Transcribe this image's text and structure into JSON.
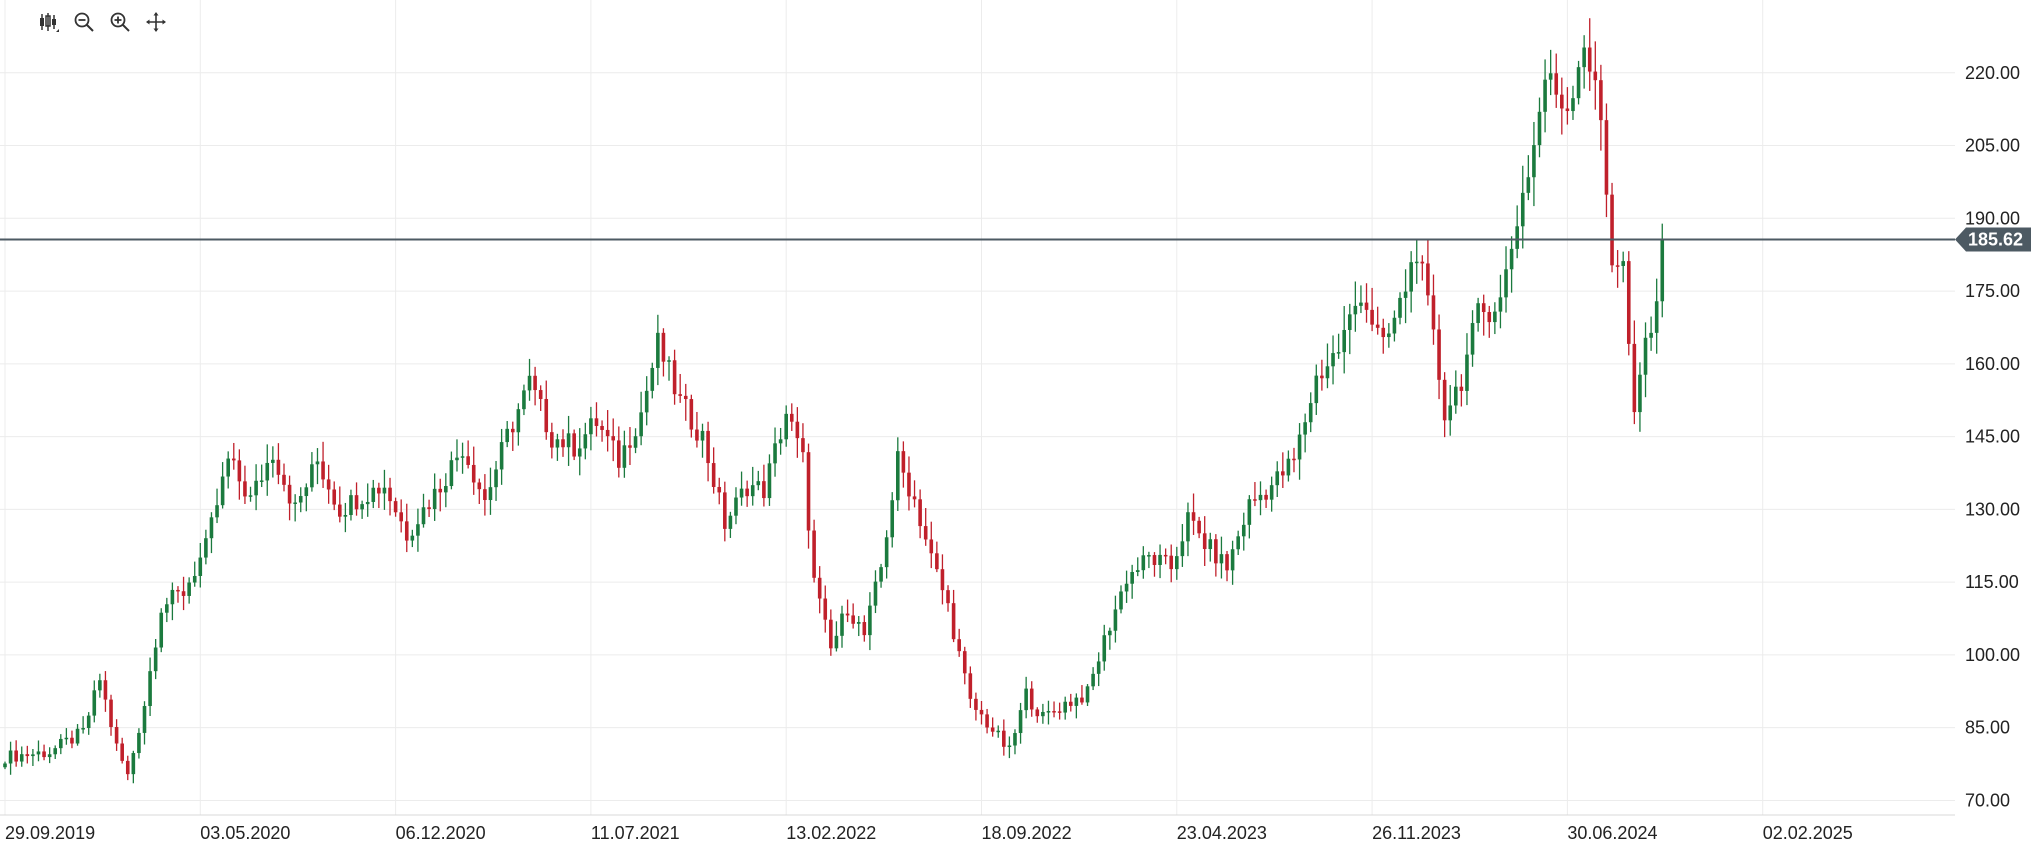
{
  "toolbar": {
    "icons": [
      "candlestick-type-icon",
      "zoom-out-icon",
      "zoom-in-icon",
      "pan-icon"
    ]
  },
  "colors": {
    "up": "#1b7a3e",
    "down": "#c0202b",
    "grid": "#ececec",
    "price_line": "#4d5a63",
    "price_tag": "#4d5a63",
    "axis_text": "#222222"
  },
  "chart_data": {
    "type": "candlestick",
    "title": "",
    "xlabel": "",
    "ylabel": "",
    "ylim": [
      67,
      235
    ],
    "yticks": [
      "70.00",
      "85.00",
      "100.00",
      "115.00",
      "130.00",
      "145.00",
      "160.00",
      "175.00",
      "190.00",
      "205.00",
      "220.00"
    ],
    "xticks": [
      "29.09.2019",
      "03.05.2020",
      "06.12.2020",
      "11.07.2021",
      "13.02.2022",
      "18.09.2022",
      "23.04.2023",
      "26.11.2023",
      "30.06.2024",
      "02.02.2025"
    ],
    "current_price": 185.62,
    "current_price_label": "185.62",
    "period": "weekly",
    "anchors": [
      [
        0,
        79
      ],
      [
        8,
        80
      ],
      [
        14,
        84
      ],
      [
        17,
        95
      ],
      [
        20,
        81
      ],
      [
        22,
        75
      ],
      [
        25,
        90
      ],
      [
        28,
        110
      ],
      [
        32,
        113
      ],
      [
        36,
        122
      ],
      [
        40,
        140
      ],
      [
        44,
        132
      ],
      [
        48,
        142
      ],
      [
        52,
        130
      ],
      [
        56,
        140
      ],
      [
        60,
        130
      ],
      [
        64,
        133
      ],
      [
        68,
        135
      ],
      [
        72,
        125
      ],
      [
        78,
        135
      ],
      [
        82,
        143
      ],
      [
        86,
        132
      ],
      [
        90,
        145
      ],
      [
        94,
        156
      ],
      [
        98,
        145
      ],
      [
        102,
        143
      ],
      [
        106,
        148
      ],
      [
        110,
        140
      ],
      [
        114,
        150
      ],
      [
        117,
        164
      ],
      [
        121,
        152
      ],
      [
        125,
        145
      ],
      [
        129,
        127
      ],
      [
        133,
        135
      ],
      [
        136,
        134
      ],
      [
        140,
        150
      ],
      [
        143,
        140
      ],
      [
        145,
        115
      ],
      [
        148,
        101
      ],
      [
        151,
        110
      ],
      [
        154,
        104
      ],
      [
        157,
        118
      ],
      [
        160,
        140
      ],
      [
        163,
        132
      ],
      [
        166,
        120
      ],
      [
        169,
        110
      ],
      [
        173,
        90
      ],
      [
        176,
        86
      ],
      [
        180,
        80
      ],
      [
        183,
        92
      ],
      [
        186,
        87
      ],
      [
        190,
        90
      ],
      [
        194,
        92
      ],
      [
        197,
        103
      ],
      [
        201,
        116
      ],
      [
        205,
        120
      ],
      [
        209,
        118
      ],
      [
        212,
        128
      ],
      [
        215,
        123
      ],
      [
        219,
        118
      ],
      [
        223,
        131
      ],
      [
        227,
        135
      ],
      [
        231,
        140
      ],
      [
        235,
        157
      ],
      [
        239,
        163
      ],
      [
        243,
        175
      ],
      [
        247,
        163
      ],
      [
        250,
        172
      ],
      [
        253,
        184
      ],
      [
        256,
        165
      ],
      [
        258,
        150
      ],
      [
        261,
        157
      ],
      [
        264,
        170
      ],
      [
        268,
        173
      ],
      [
        271,
        190
      ],
      [
        274,
        205
      ],
      [
        276,
        219
      ],
      [
        280,
        213
      ],
      [
        283,
        227
      ],
      [
        286,
        210
      ],
      [
        288,
        182
      ],
      [
        290,
        180
      ],
      [
        292,
        148
      ],
      [
        294,
        165
      ],
      [
        296,
        170
      ],
      [
        297,
        185.62
      ]
    ]
  }
}
